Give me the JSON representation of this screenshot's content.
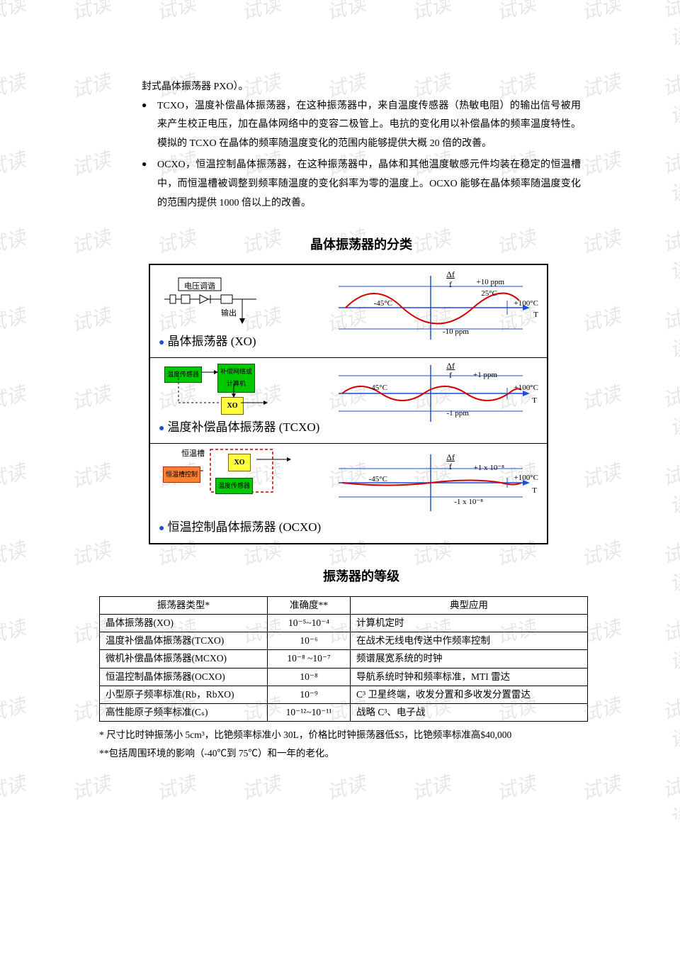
{
  "watermark_text": "试读",
  "body": {
    "cont_para": "封式晶体振荡器 PXO）。",
    "bullet1": "TCXO，温度补偿晶体振荡器，在这种振荡器中，来自温度传感器（热敏电阻）的输出信号被用来产生校正电压，加在晶体网络中的变容二极管上。电抗的变化用以补偿晶体的频率温度特性。模拟的 TCXO 在晶体的频率随温度变化的范围内能够提供大概 20 倍的改善。",
    "bullet2": "OCXO，恒温控制晶体振荡器，在这种振荡器中，晶体和其他温度敏感元件均装在稳定的恒温槽中，而恒温槽被调整到频率随温度的变化斜率为零的温度上。OCXO 能够在晶体频率随温度变化的范围内提供 1000 倍以上的改善。"
  },
  "diagram": {
    "title": "晶体振荡器的分类",
    "row1": {
      "label": "晶体振荡器 (XO)",
      "voltage_tune": "电压调谐",
      "output": "输出",
      "df_f": "Δf",
      "f": "f",
      "plus10": "+10 ppm",
      "t25": "25°C",
      "tcold": "-45°C",
      "thot": "+100°C",
      "minus10": "-10 ppm",
      "curve_color": "#d40000",
      "axis_color": "#1a4fd6"
    },
    "row2": {
      "label": "温度补偿晶体振荡器 (TCXO)",
      "temp_sensor": "温度传感器",
      "comp_net": "补偿网络或\n计算机",
      "xo": "XO",
      "plus1": "+1 ppm",
      "minus1": "-1 ppm",
      "tcold": "-45°C",
      "thot": "+100°C"
    },
    "row3": {
      "label": "恒温控制晶体振荡器 (OCXO)",
      "oven": "恒温槽",
      "oven_ctrl": "恒温槽控制",
      "temp_sensor": "温度传感器",
      "xo": "XO",
      "plus": "+1 x 10⁻⁸",
      "minus": "-1 x 10⁻⁸",
      "tcold": "-45°C",
      "thot": "+100°C"
    }
  },
  "table": {
    "title": "振荡器的等级",
    "headers": [
      "振荡器类型*",
      "准确度**",
      "典型应用"
    ],
    "rows": [
      [
        "晶体振荡器(XO)",
        "10⁻⁵~10⁻⁴",
        "计算机定时"
      ],
      [
        "温度补偿晶体振荡器(TCXO)",
        "10⁻⁶",
        "在战术无线电传送中作频率控制"
      ],
      [
        "微机补偿晶体振荡器(MCXO)",
        "10⁻⁸ ~10⁻⁷",
        "频谱展宽系统的时钟"
      ],
      [
        "恒温控制晶体振荡器(OCXO)",
        "10⁻⁸",
        "导航系统时钟和频率标准，MTI 雷达"
      ],
      [
        "小型原子频率标准(Rb，RbXO)",
        "10⁻⁹",
        "C³ 卫星终端，收发分置和多收发分置雷达"
      ],
      [
        "高性能原子频率标准(Cₛ)",
        "10⁻¹²~10⁻¹¹",
        "战略 C³、电子战"
      ]
    ]
  },
  "footnotes": {
    "f1": "* 尺寸比时钟振荡小 5cm³，比铯频率标准小 30L，价格比时钟振荡器低$5，比铯频率标准高$40,000",
    "f2": "**包括周围环境的影响（-40℃到 75℃）和一年的老化。"
  }
}
